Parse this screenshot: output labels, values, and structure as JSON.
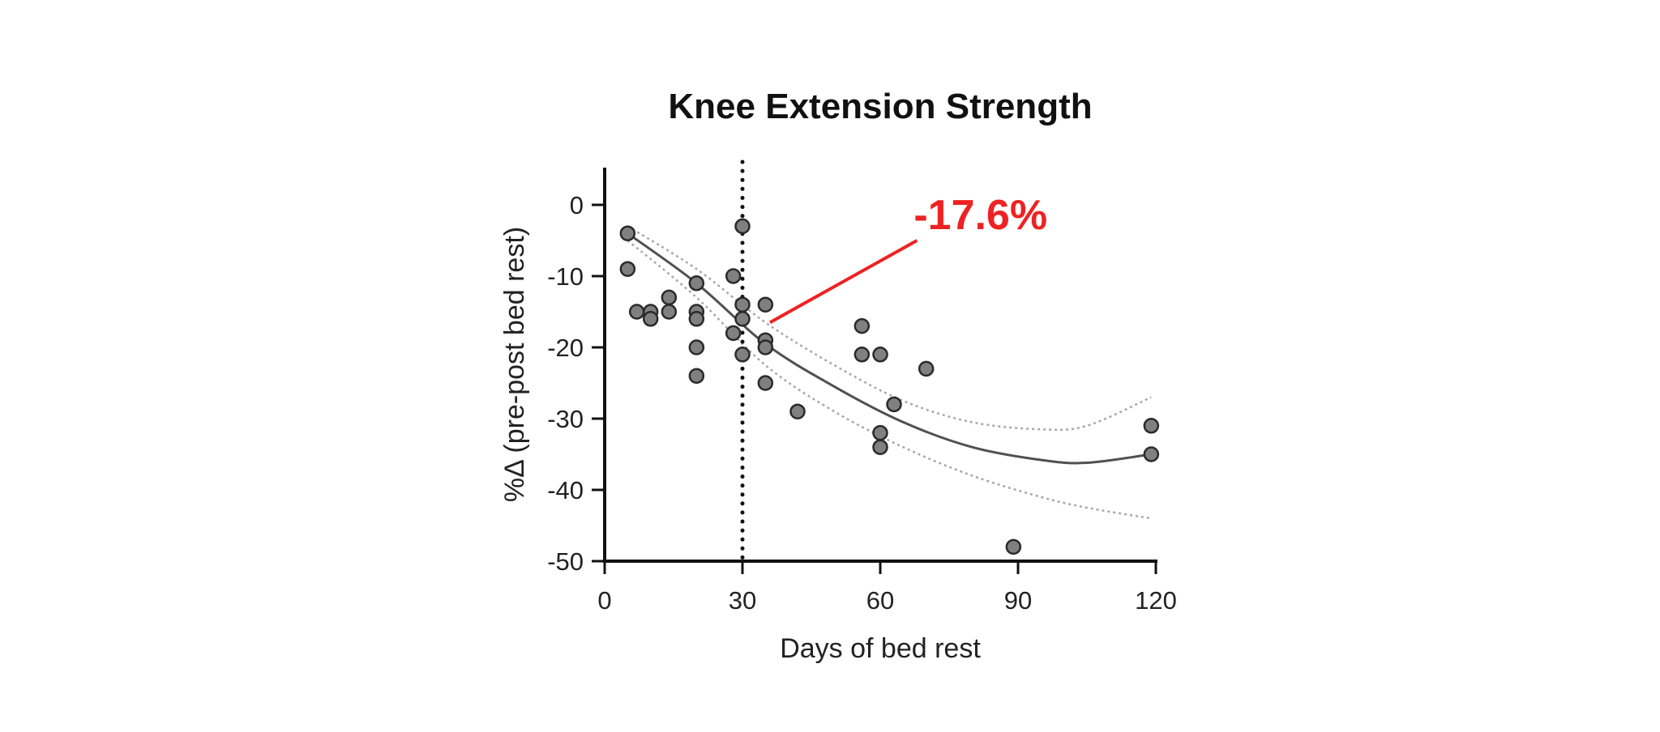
{
  "chart_data": {
    "type": "scatter",
    "title": "Knee Extension Strength",
    "xlabel": "Days of bed rest",
    "ylabel": "%Δ (pre-post bed rest)",
    "xlim": [
      0,
      120
    ],
    "ylim": [
      -50,
      5
    ],
    "xticks": [
      0,
      30,
      60,
      90,
      120
    ],
    "yticks": [
      0,
      -10,
      -20,
      -30,
      -40,
      -50
    ],
    "grid": false,
    "reference_line": {
      "x": 30,
      "style": "dotted"
    },
    "points": [
      {
        "x": 5,
        "y": -4
      },
      {
        "x": 5,
        "y": -9
      },
      {
        "x": 7,
        "y": -15
      },
      {
        "x": 10,
        "y": -15
      },
      {
        "x": 10,
        "y": -16
      },
      {
        "x": 14,
        "y": -13
      },
      {
        "x": 14,
        "y": -15
      },
      {
        "x": 20,
        "y": -11
      },
      {
        "x": 20,
        "y": -15
      },
      {
        "x": 20,
        "y": -16
      },
      {
        "x": 20,
        "y": -20
      },
      {
        "x": 20,
        "y": -24
      },
      {
        "x": 28,
        "y": -10
      },
      {
        "x": 28,
        "y": -18
      },
      {
        "x": 30,
        "y": -3
      },
      {
        "x": 30,
        "y": -14
      },
      {
        "x": 30,
        "y": -16
      },
      {
        "x": 30,
        "y": -21
      },
      {
        "x": 35,
        "y": -14
      },
      {
        "x": 35,
        "y": -19
      },
      {
        "x": 35,
        "y": -20
      },
      {
        "x": 35,
        "y": -25
      },
      {
        "x": 42,
        "y": -29
      },
      {
        "x": 56,
        "y": -17
      },
      {
        "x": 56,
        "y": -21
      },
      {
        "x": 60,
        "y": -21
      },
      {
        "x": 60,
        "y": -32
      },
      {
        "x": 60,
        "y": -34
      },
      {
        "x": 63,
        "y": -28
      },
      {
        "x": 70,
        "y": -23
      },
      {
        "x": 89,
        "y": -48
      },
      {
        "x": 119,
        "y": -31
      },
      {
        "x": 119,
        "y": -35
      }
    ],
    "fit_curve": {
      "x": [
        5,
        20,
        35,
        50,
        65,
        80,
        95,
        105,
        119
      ],
      "y": [
        -4,
        -11,
        -19.5,
        -25.5,
        -30.5,
        -34,
        -35.8,
        -36.2,
        -35
      ]
    },
    "ci_upper": {
      "x": [
        5,
        20,
        35,
        50,
        65,
        80,
        95,
        105,
        119
      ],
      "y": [
        -3,
        -9,
        -16.5,
        -22.5,
        -27.5,
        -30.5,
        -31.5,
        -31,
        -27
      ]
    },
    "ci_lower": {
      "x": [
        5,
        20,
        35,
        50,
        65,
        80,
        95,
        105,
        119
      ],
      "y": [
        -5,
        -13,
        -22.5,
        -29,
        -34,
        -38,
        -41,
        -42.5,
        -44
      ]
    },
    "annotation": {
      "text": "-17.6%",
      "color": "#ee2222",
      "leader_from": {
        "x": 36,
        "y": -16.5
      },
      "leader_to": {
        "x": 68,
        "y": -5
      }
    },
    "colors": {
      "point_fill": "#808080",
      "point_stroke": "#2a2a2a",
      "fit_line": "#505050",
      "ci_line": "#a8a8a8",
      "axis": "#111111"
    }
  }
}
